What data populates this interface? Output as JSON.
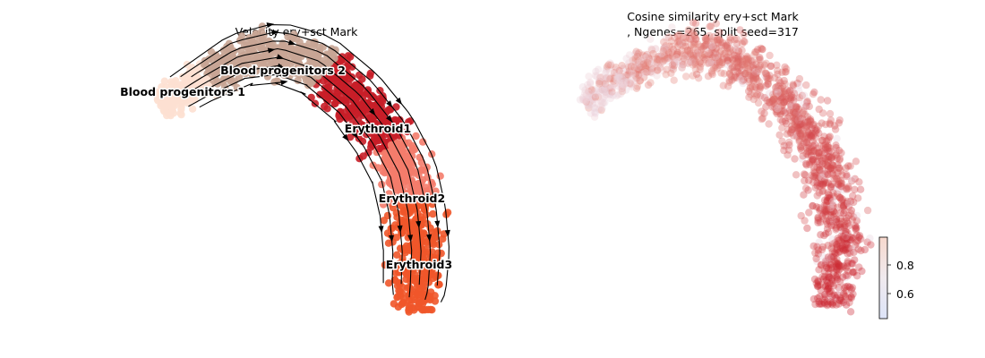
{
  "chart_data": [
    {
      "type": "scatter",
      "title": "Velocity ery+sct Mark",
      "clusters": [
        {
          "name": "Blood progenitors 1",
          "color": "#fde0d2"
        },
        {
          "name": "Blood progenitors 2",
          "color": "#c8a595"
        },
        {
          "name": "Erythroid1",
          "color": "#c81e28"
        },
        {
          "name": "Erythroid2",
          "color": "#f47c6c"
        },
        {
          "name": "Erythroid3",
          "color": "#f0562a"
        }
      ],
      "overlay": "velocity-streamlines",
      "axes_visible": false
    },
    {
      "type": "scatter",
      "title_line1": "Cosine similarity ery+sct Mark",
      "title_line2": ", Ngenes=265, split seed=317",
      "colormap": "coolwarm",
      "colorbar": {
        "ticks": [
          "0.6",
          "0.8"
        ],
        "range": [
          0.45,
          0.99
        ]
      },
      "axes_visible": false
    }
  ],
  "colors": {
    "streamline": "#000000",
    "low": "#d5dcf5",
    "high": "#c8202a"
  }
}
